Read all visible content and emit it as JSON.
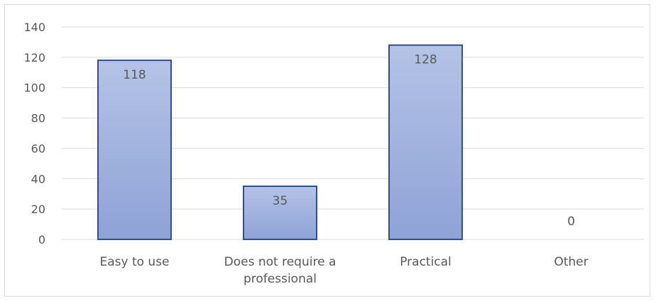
{
  "chart_data": {
    "type": "bar",
    "categories": [
      "Easy to use",
      "Does not require a professional",
      "Practical",
      "Other"
    ],
    "category_lines": [
      [
        "Easy to use"
      ],
      [
        "Does not require a",
        "professional"
      ],
      [
        "Practical"
      ],
      [
        "Other"
      ]
    ],
    "values": [
      118,
      35,
      128,
      0
    ],
    "data_labels": [
      "118",
      "35",
      "128",
      "0"
    ],
    "y_ticks": [
      0,
      20,
      40,
      60,
      80,
      100,
      120,
      140
    ],
    "ylim": [
      0,
      140
    ],
    "grid": true,
    "legend": "none",
    "colors": {
      "bar_fill_top": "#b4c3e6",
      "bar_fill_bottom": "#8ea2d6",
      "bar_stroke": "#2f4f8f",
      "gridline": "#d9d9d9",
      "text": "#595959"
    }
  }
}
